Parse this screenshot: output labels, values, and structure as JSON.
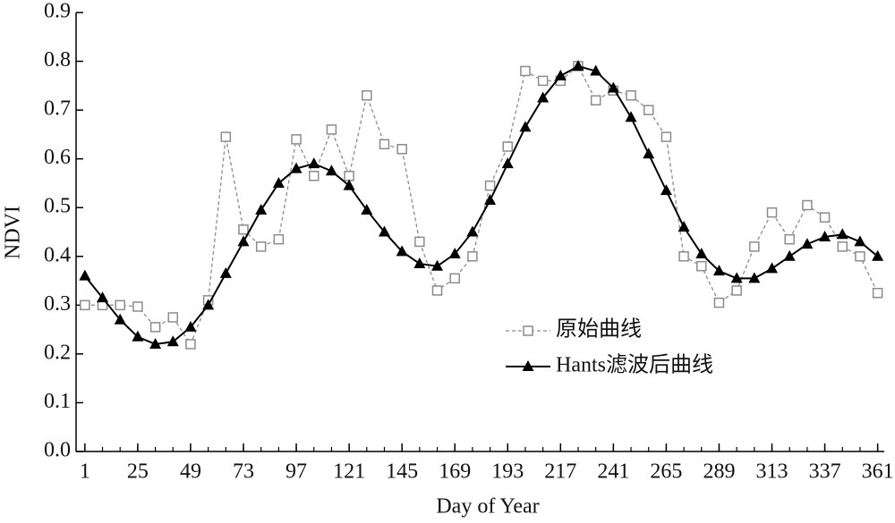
{
  "chart_data": {
    "type": "line",
    "xlabel": "Day of Year",
    "ylabel": "NDVI",
    "x": [
      1,
      9,
      17,
      25,
      33,
      41,
      49,
      57,
      65,
      73,
      81,
      89,
      97,
      105,
      113,
      121,
      129,
      137,
      145,
      153,
      161,
      169,
      177,
      185,
      193,
      201,
      209,
      217,
      225,
      233,
      241,
      249,
      257,
      265,
      273,
      281,
      289,
      297,
      305,
      313,
      321,
      329,
      337,
      345,
      353,
      361
    ],
    "series": [
      {
        "name": "原始曲线",
        "color": "#8c8c8c",
        "marker": "square",
        "dashed": true,
        "values": [
          0.3,
          0.3,
          0.3,
          0.297,
          0.255,
          0.275,
          0.22,
          0.31,
          0.645,
          0.455,
          0.42,
          0.435,
          0.64,
          0.565,
          0.66,
          0.565,
          0.73,
          0.63,
          0.62,
          0.43,
          0.33,
          0.355,
          0.4,
          0.545,
          0.625,
          0.78,
          0.76,
          0.76,
          0.79,
          0.72,
          0.74,
          0.73,
          0.7,
          0.645,
          0.4,
          0.38,
          0.305,
          0.33,
          0.42,
          0.49,
          0.435,
          0.505,
          0.48,
          0.42,
          0.4,
          0.325
        ]
      },
      {
        "name": "Hants滤波后曲线",
        "color": "#000000",
        "marker": "triangle",
        "dashed": false,
        "values": [
          0.36,
          0.315,
          0.27,
          0.235,
          0.22,
          0.225,
          0.255,
          0.3,
          0.365,
          0.43,
          0.495,
          0.55,
          0.58,
          0.59,
          0.575,
          0.545,
          0.495,
          0.45,
          0.41,
          0.385,
          0.38,
          0.405,
          0.45,
          0.515,
          0.59,
          0.665,
          0.725,
          0.77,
          0.79,
          0.78,
          0.745,
          0.685,
          0.61,
          0.535,
          0.46,
          0.405,
          0.37,
          0.355,
          0.355,
          0.375,
          0.4,
          0.425,
          0.44,
          0.445,
          0.43,
          0.4
        ]
      }
    ],
    "xlim": [
      -3,
      364
    ],
    "xticks": [
      1,
      25,
      49,
      73,
      97,
      121,
      145,
      169,
      193,
      217,
      241,
      265,
      289,
      313,
      337,
      361
    ],
    "ylim": [
      0,
      0.9
    ],
    "yticks": [
      {
        "value": 0,
        "label": "0.0"
      },
      0.1,
      0.2,
      0.3,
      0.4,
      0.5,
      0.6,
      0.7,
      0.8,
      0.9
    ],
    "grid": false,
    "legend": "center-right"
  }
}
